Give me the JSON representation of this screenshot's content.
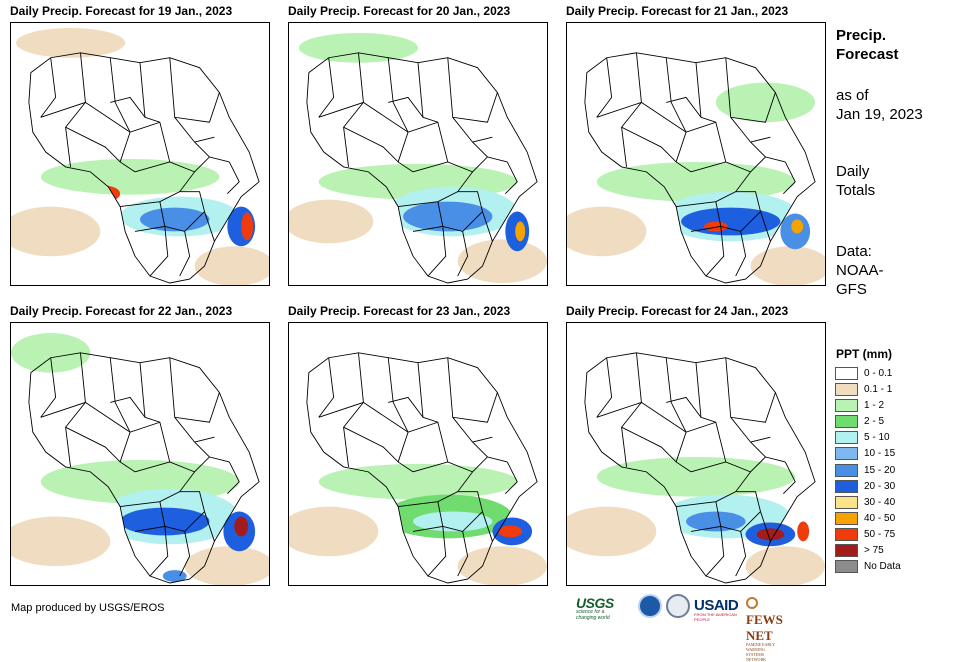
{
  "panels": [
    {
      "title": "Daily Precip. Forecast for 19 Jan., 2023"
    },
    {
      "title": "Daily Precip. Forecast for 20 Jan., 2023"
    },
    {
      "title": "Daily Precip. Forecast for 21 Jan., 2023"
    },
    {
      "title": "Daily Precip. Forecast for 22 Jan., 2023"
    },
    {
      "title": "Daily Precip. Forecast for 23 Jan., 2023"
    },
    {
      "title": "Daily Precip. Forecast for 24 Jan., 2023"
    }
  ],
  "sidebar": {
    "title_line1": "Precip.",
    "title_line2": "Forecast",
    "asof_line1": "as of",
    "asof_line2": "Jan 19, 2023",
    "totals_line1": "Daily",
    "totals_line2": "Totals",
    "source_line1": "Data:",
    "source_line2": "NOAA-",
    "source_line3": "GFS"
  },
  "legend": {
    "title": "PPT (mm)",
    "items": [
      {
        "label": "0 - 0.1",
        "color": "#ffffff"
      },
      {
        "label": "0.1 - 1",
        "color": "#f0dcc0"
      },
      {
        "label": "1 - 2",
        "color": "#b9f2b2"
      },
      {
        "label": "2 - 5",
        "color": "#70dc70"
      },
      {
        "label": "5 - 10",
        "color": "#b3f0f0"
      },
      {
        "label": "10 - 15",
        "color": "#7fb8ee"
      },
      {
        "label": "15 - 20",
        "color": "#4a8fe6"
      },
      {
        "label": "20 - 30",
        "color": "#1e5fe0"
      },
      {
        "label": "30 - 40",
        "color": "#fbe38a"
      },
      {
        "label": "40 - 50",
        "color": "#f5a300"
      },
      {
        "label": "50 - 75",
        "color": "#f03b0d"
      },
      {
        "label": "> 75",
        "color": "#a31c1c"
      },
      {
        "label": "No Data",
        "color": "#8c8c8c"
      }
    ]
  },
  "footer": {
    "credit": "Map produced by USGS/EROS",
    "logo_usgs": "USGS",
    "logo_usgs_tag": "science for a changing world",
    "logo_usaid": "USAID",
    "logo_usaid_tag": "FROM THE AMERICAN PEOPLE",
    "logo_fews": "FEWS NET",
    "logo_fews_tag": "FAMINE EARLY WARNING SYSTEMS NETWORK"
  }
}
